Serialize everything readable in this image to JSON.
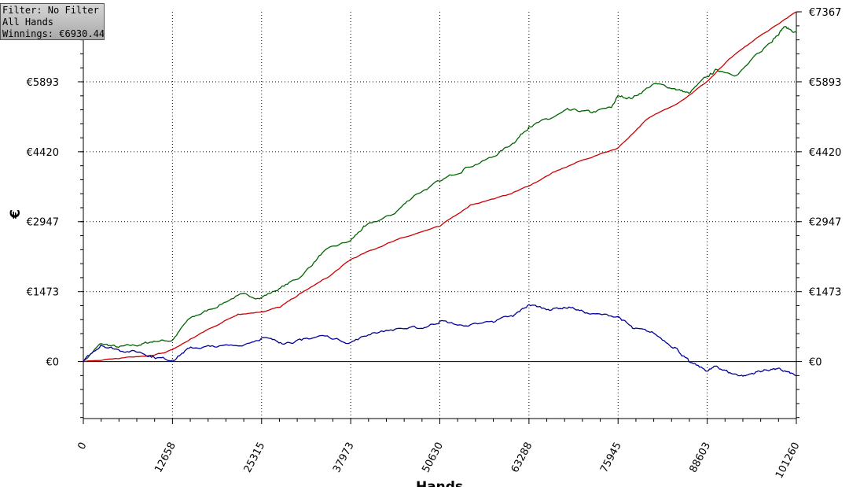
{
  "info_box": {
    "filter": "Filter: No Filter",
    "hands": "All Hands",
    "winnings": "Winnings: €6930.44"
  },
  "chart_data": {
    "type": "line",
    "xlabel": "Hands",
    "ylabel": "€",
    "xlim": [
      0,
      101260
    ],
    "ylim": [
      -1200,
      7367
    ],
    "x_ticks": [
      0,
      12658,
      25315,
      37973,
      50630,
      63288,
      75945,
      88603,
      101260
    ],
    "x_tick_labels": [
      "0",
      "12658",
      "25315",
      "37973",
      "50630",
      "63288",
      "75945",
      "88603",
      "101260"
    ],
    "y_ticks": [
      0,
      1473,
      2947,
      4420,
      5893,
      7367
    ],
    "y_tick_labels": [
      "€0",
      "€1473",
      "€2947",
      "€4420",
      "€5893",
      "€7367"
    ],
    "grid": true,
    "series": [
      {
        "color": "#006400",
        "x": [
          0,
          2500,
          5000,
          8000,
          10000,
          12658,
          15000,
          18000,
          22000,
          25315,
          28000,
          31000,
          34000,
          37973,
          40000,
          44000,
          47000,
          50630,
          54000,
          58000,
          61000,
          63288,
          66000,
          69000,
          72000,
          75000,
          75945,
          78000,
          81000,
          84000,
          86000,
          88603,
          90000,
          93000,
          96000,
          98000,
          99500,
          101260
        ],
        "y": [
          0,
          380,
          300,
          350,
          430,
          450,
          900,
          1100,
          1400,
          1350,
          1550,
          1800,
          2300,
          2550,
          2850,
          3100,
          3500,
          3800,
          4050,
          4300,
          4600,
          4950,
          5100,
          5300,
          5250,
          5350,
          5600,
          5550,
          5850,
          5750,
          5650,
          6000,
          6150,
          6050,
          6500,
          6800,
          7050,
          6930
        ]
      },
      {
        "color": "#cc0000",
        "x": [
          0,
          5000,
          10000,
          12658,
          15000,
          18000,
          22000,
          25315,
          28000,
          31000,
          35000,
          37973,
          41000,
          45000,
          50630,
          55000,
          60000,
          63288,
          67000,
          71000,
          75945,
          80000,
          85000,
          88603,
          92000,
          96000,
          101260
        ],
        "y": [
          0,
          60,
          130,
          250,
          450,
          700,
          1000,
          1050,
          1150,
          1450,
          1800,
          2150,
          2350,
          2600,
          2850,
          3300,
          3500,
          3700,
          4000,
          4250,
          4500,
          5100,
          5500,
          5900,
          6400,
          6850,
          7367
        ]
      },
      {
        "color": "#000099",
        "x": [
          0,
          2500,
          5000,
          8000,
          10000,
          12658,
          15000,
          18000,
          22000,
          25315,
          28000,
          31000,
          34000,
          37973,
          41000,
          45000,
          48000,
          50630,
          54000,
          58000,
          61000,
          63288,
          66000,
          69000,
          72000,
          75945,
          78000,
          81000,
          84000,
          86000,
          88603,
          90000,
          92000,
          94000,
          96000,
          98000,
          99500,
          101260
        ],
        "y": [
          0,
          350,
          250,
          200,
          100,
          30,
          280,
          320,
          330,
          500,
          400,
          450,
          550,
          400,
          600,
          700,
          700,
          850,
          750,
          850,
          950,
          1200,
          1100,
          1150,
          1000,
          950,
          700,
          600,
          300,
          0,
          -200,
          -100,
          -250,
          -300,
          -200,
          -150,
          -200,
          -300
        ]
      }
    ]
  }
}
